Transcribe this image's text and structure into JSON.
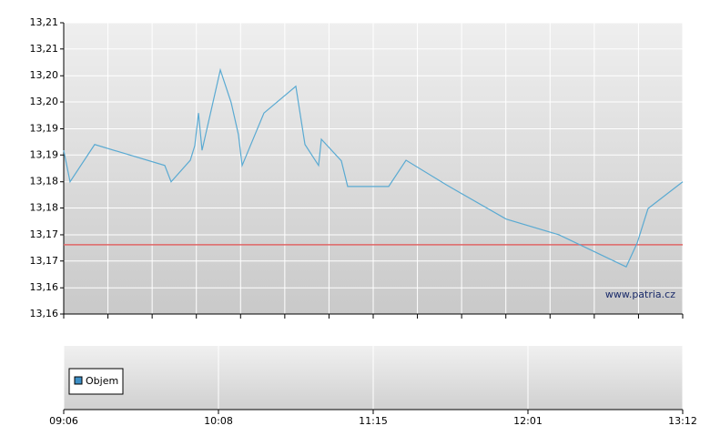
{
  "chart_data": {
    "type": "line",
    "watermark": "www.patria.cz",
    "x": [
      0,
      0.041,
      0.2,
      0.653,
      0.694,
      0.818,
      0.847,
      0.871,
      0.894,
      1.012,
      1.082,
      1.129,
      1.153,
      1.294,
      1.5,
      1.559,
      1.647,
      1.665,
      1.794,
      1.835,
      2.1,
      2.212,
      2.471,
      2.859,
      3.2,
      3.635,
      3.706,
      3.776,
      4
    ],
    "series": [
      {
        "color": "#5aaad2",
        "values": [
          13.1881,
          13.1827,
          13.1891,
          13.1855,
          13.1827,
          13.1864,
          13.1889,
          13.1945,
          13.1881,
          13.2019,
          13.1963,
          13.1908,
          13.1855,
          13.1945,
          13.1991,
          13.1891,
          13.1855,
          13.19,
          13.1863,
          13.1819,
          13.1819,
          13.1864,
          13.1822,
          13.1763,
          13.1736,
          13.1681,
          13.1722,
          13.1781,
          13.1827
        ]
      }
    ],
    "reference_line": {
      "value": 13.1719,
      "color": "#e06666"
    },
    "xlim": [
      0,
      4
    ],
    "xticks": [
      {
        "value": 0,
        "label": "09:06"
      },
      {
        "value": 1,
        "label": "10:08"
      },
      {
        "value": 2,
        "label": "11:15"
      },
      {
        "value": 3,
        "label": "12:01"
      },
      {
        "value": 4,
        "label": "13:12"
      }
    ],
    "ylim": [
      13.16,
      13.21
    ],
    "yticks": [
      {
        "value": 13.16,
        "label": "13,16"
      },
      {
        "value": 13.1645,
        "label": "13,16"
      },
      {
        "value": 13.1691,
        "label": "13,17"
      },
      {
        "value": 13.1736,
        "label": "13,17"
      },
      {
        "value": 13.1782,
        "label": "13,18"
      },
      {
        "value": 13.1827,
        "label": "13,18"
      },
      {
        "value": 13.1873,
        "label": "13,19"
      },
      {
        "value": 13.1918,
        "label": "13,19"
      },
      {
        "value": 13.1964,
        "label": "13,20"
      },
      {
        "value": 13.2009,
        "label": "13,20"
      },
      {
        "value": 13.2055,
        "label": "13,21"
      },
      {
        "value": 13.21,
        "label": "13,21"
      }
    ],
    "grid": true,
    "volume_panel": {
      "legend": "Objem",
      "color": "#3d8fc6"
    }
  }
}
